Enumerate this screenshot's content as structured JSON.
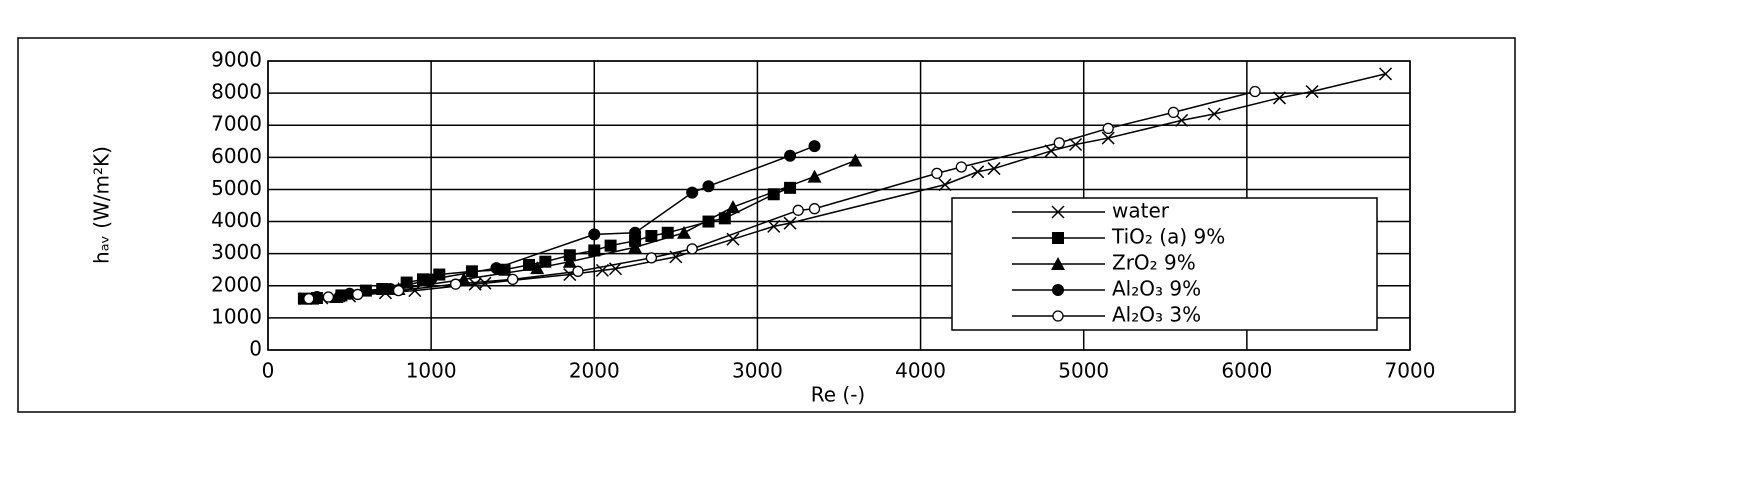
{
  "chart_data": {
    "type": "line",
    "xlabel": "Re (-)",
    "ylabel": "hₐᵥ (W/m²K)",
    "xlim": [
      0,
      7000
    ],
    "xticks": [
      0,
      1000,
      2000,
      3000,
      4000,
      5000,
      6000,
      7000
    ],
    "ylim": [
      0,
      9000
    ],
    "yticks": [
      0,
      1000,
      2000,
      3000,
      4000,
      5000,
      6000,
      7000,
      8000,
      9000
    ],
    "grid": true,
    "legend": "lower right",
    "series": [
      {
        "name": "water",
        "color": "#000000",
        "marker": "x",
        "x": [
          230,
          330,
          500,
          720,
          900,
          1270,
          1330,
          1850,
          2050,
          2130,
          2500,
          2850,
          3100,
          3200,
          4150,
          4350,
          4450,
          4800,
          4950,
          5150,
          5600,
          5800,
          6200,
          6400,
          6850
        ],
        "values": [
          1600,
          1620,
          1680,
          1780,
          1850,
          2050,
          2080,
          2350,
          2480,
          2530,
          2900,
          3450,
          3850,
          3950,
          5150,
          5550,
          5650,
          6200,
          6400,
          6600,
          7150,
          7350,
          7850,
          8050,
          8600
        ]
      },
      {
        "name": "TiO₂ (a) 9%",
        "color": "#000000",
        "marker": "square",
        "x": [
          220,
          300,
          450,
          600,
          700,
          850,
          950,
          1050,
          1250,
          1450,
          1600,
          1700,
          1850,
          2000,
          2100,
          2250,
          2350,
          2450,
          2700,
          2800,
          3100,
          3200
        ],
        "values": [
          1600,
          1620,
          1700,
          1850,
          1900,
          2100,
          2200,
          2350,
          2450,
          2500,
          2650,
          2750,
          2950,
          3100,
          3250,
          3400,
          3550,
          3650,
          4000,
          4100,
          4850,
          5050
        ]
      },
      {
        "name": "ZrO₂ 9%",
        "color": "#000000",
        "marker": "triangle",
        "x": [
          270,
          420,
          800,
          1200,
          1650,
          1850,
          2250,
          2550,
          2850,
          3350,
          3600
        ],
        "values": [
          1600,
          1650,
          1900,
          2200,
          2550,
          2750,
          3200,
          3650,
          4450,
          5400,
          5900
        ]
      },
      {
        "name": "Al₂O₃ 9%",
        "color": "#000000",
        "marker": "circle",
        "x": [
          300,
          500,
          750,
          1000,
          1400,
          2000,
          2250,
          2600,
          2700,
          3200,
          3350
        ],
        "values": [
          1650,
          1750,
          1900,
          2200,
          2550,
          3600,
          3650,
          4900,
          5100,
          6050,
          6350
        ]
      },
      {
        "name": "Al₂O₃ 3%",
        "color": "#000000",
        "marker": "open-circle",
        "x": [
          250,
          370,
          550,
          800,
          1150,
          1500,
          1900,
          2350,
          2600,
          3250,
          3350,
          4100,
          4250,
          4850,
          5150,
          5550,
          6050
        ],
        "values": [
          1600,
          1650,
          1730,
          1850,
          2050,
          2200,
          2450,
          2870,
          3150,
          4350,
          4400,
          5500,
          5700,
          6450,
          6900,
          7400,
          8050
        ]
      }
    ]
  }
}
